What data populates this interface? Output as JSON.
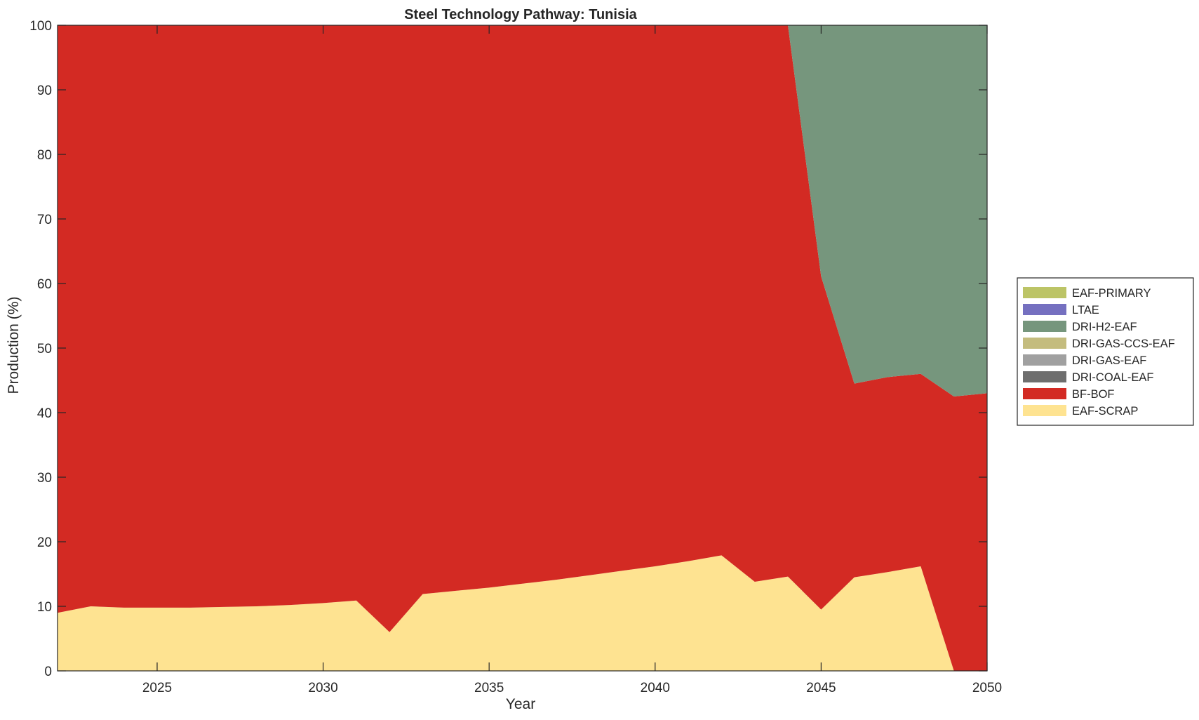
{
  "chart_data": {
    "type": "area",
    "stacked": true,
    "normalized_percent": true,
    "title": "Steel Technology Pathway: Tunisia",
    "xlabel": "Year",
    "ylabel": "Production (%)",
    "xlim": [
      2022,
      2050
    ],
    "ylim": [
      0,
      100
    ],
    "x_ticks": [
      2025,
      2030,
      2035,
      2040,
      2045,
      2050
    ],
    "y_ticks": [
      0,
      10,
      20,
      30,
      40,
      50,
      60,
      70,
      80,
      90,
      100
    ],
    "grid": false,
    "legend_position": "right",
    "x": [
      2022,
      2023,
      2024,
      2025,
      2026,
      2027,
      2028,
      2029,
      2030,
      2031,
      2032,
      2033,
      2034,
      2035,
      2036,
      2037,
      2038,
      2039,
      2040,
      2041,
      2042,
      2043,
      2044,
      2045,
      2046,
      2047,
      2048,
      2049,
      2050
    ],
    "series": [
      {
        "name": "EAF-SCRAP",
        "color": "#FEE391",
        "values": [
          9.0,
          10.0,
          9.8,
          9.8,
          9.8,
          9.9,
          10.0,
          10.2,
          10.5,
          10.9,
          6.0,
          11.9,
          12.4,
          12.9,
          13.5,
          14.1,
          14.8,
          15.5,
          16.2,
          17.0,
          17.9,
          13.8,
          14.6,
          9.5,
          14.5,
          15.3,
          16.2,
          0.0,
          0.0
        ]
      },
      {
        "name": "BF-BOF",
        "color": "#D32A23",
        "values": [
          91.0,
          90.0,
          90.2,
          90.2,
          90.2,
          90.1,
          90.0,
          89.8,
          89.5,
          89.1,
          94.0,
          88.1,
          87.6,
          87.1,
          86.5,
          85.9,
          85.2,
          84.5,
          83.8,
          83.0,
          82.1,
          86.2,
          85.4,
          51.6,
          30.0,
          30.2,
          29.8,
          42.5,
          43.0
        ]
      },
      {
        "name": "DRI-COAL-EAF",
        "color": "#6E6E6E",
        "values": [
          0,
          0,
          0,
          0,
          0,
          0,
          0,
          0,
          0,
          0,
          0,
          0,
          0,
          0,
          0,
          0,
          0,
          0,
          0,
          0,
          0,
          0,
          0,
          0,
          0,
          0,
          0,
          0,
          0
        ]
      },
      {
        "name": "DRI-GAS-EAF",
        "color": "#A0A0A0",
        "values": [
          0,
          0,
          0,
          0,
          0,
          0,
          0,
          0,
          0,
          0,
          0,
          0,
          0,
          0,
          0,
          0,
          0,
          0,
          0,
          0,
          0,
          0,
          0,
          0,
          0,
          0,
          0,
          0,
          0
        ]
      },
      {
        "name": "DRI-GAS-CCS-EAF",
        "color": "#C4BC7E",
        "values": [
          0,
          0,
          0,
          0,
          0,
          0,
          0,
          0,
          0,
          0,
          0,
          0,
          0,
          0,
          0,
          0,
          0,
          0,
          0,
          0,
          0,
          0,
          0,
          0,
          0,
          0,
          0,
          0,
          0
        ]
      },
      {
        "name": "DRI-H2-EAF",
        "color": "#76967D",
        "values": [
          0,
          0,
          0,
          0,
          0,
          0,
          0,
          0,
          0,
          0,
          0,
          0,
          0,
          0,
          0,
          0,
          0,
          0,
          0,
          0,
          0,
          0,
          0,
          38.9,
          55.5,
          54.5,
          54.0,
          57.5,
          57.0
        ]
      },
      {
        "name": "LTAE",
        "color": "#7570C0",
        "values": [
          0,
          0,
          0,
          0,
          0,
          0,
          0,
          0,
          0,
          0,
          0,
          0,
          0,
          0,
          0,
          0,
          0,
          0,
          0,
          0,
          0,
          0,
          0,
          0,
          0,
          0,
          0,
          0,
          0
        ]
      },
      {
        "name": "EAF-PRIMARY",
        "color": "#BCC466",
        "values": [
          0,
          0,
          0,
          0,
          0,
          0,
          0,
          0,
          0,
          0,
          0,
          0,
          0,
          0,
          0,
          0,
          0,
          0,
          0,
          0,
          0,
          0,
          0,
          0,
          0,
          0,
          0,
          0,
          0
        ]
      }
    ],
    "legend_order": [
      "EAF-PRIMARY",
      "LTAE",
      "DRI-H2-EAF",
      "DRI-GAS-CCS-EAF",
      "DRI-GAS-EAF",
      "DRI-COAL-EAF",
      "BF-BOF",
      "EAF-SCRAP"
    ]
  }
}
